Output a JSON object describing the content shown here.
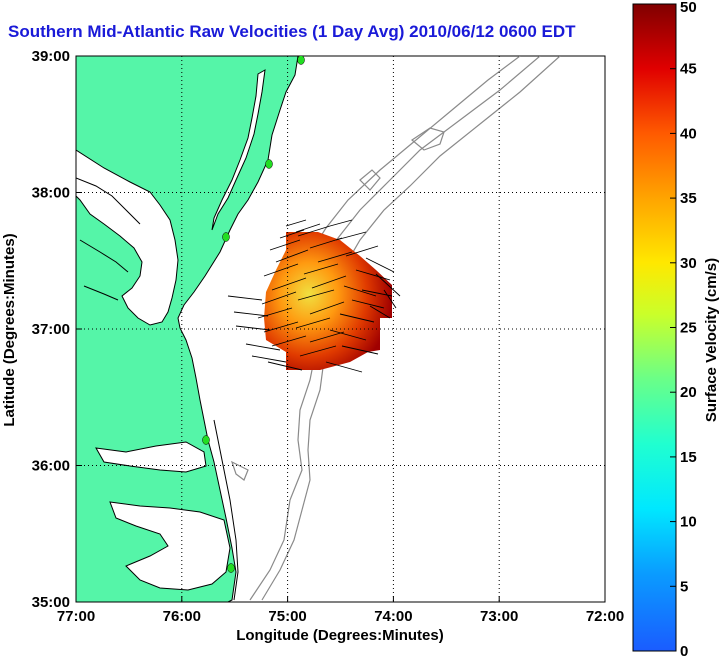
{
  "title": "Southern Mid-Atlantic Raw Velocities (1 Day Avg) 2010/06/12 0600 EDT",
  "map": {
    "lon_range": [
      -77,
      -72
    ],
    "lat_range": [
      35,
      39
    ],
    "xlabel": "Longitude (Degrees:Minutes)",
    "ylabel": "Latitude (Degrees:Minutes)",
    "x_ticks": [
      "77:00",
      "76:00",
      "75:00",
      "74:00",
      "73:00",
      "72:00"
    ],
    "y_ticks": [
      "39:00",
      "38:00",
      "37:00",
      "36:00",
      "35:00"
    ],
    "grid": true,
    "land_color": "#55f5a8",
    "coastline_color": "#000000",
    "bathymetry_color": "#8a8a8a",
    "station_color": "#22dd22"
  },
  "colorbar": {
    "label": "Surface Velocity (cm/s)",
    "min": 0,
    "max": 50,
    "ticks": [
      "0",
      "5",
      "10",
      "15",
      "20",
      "25",
      "30",
      "35",
      "40",
      "45",
      "50"
    ]
  }
}
